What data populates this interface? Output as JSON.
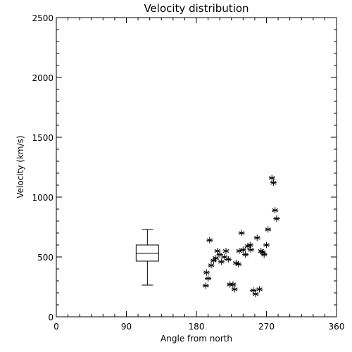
{
  "chart_data": {
    "type": "scatter",
    "title": "Velocity distribution",
    "xlabel": "Angle from north",
    "ylabel": "Velocity (km/s)",
    "xlim": [
      0,
      360
    ],
    "ylim": [
      0,
      2500
    ],
    "xticks": [
      0,
      90,
      180,
      270,
      360
    ],
    "yticks": [
      0,
      500,
      1000,
      1500,
      2000,
      2500
    ],
    "marker": "asterisk",
    "grid": false,
    "points": [
      {
        "x": 197,
        "y": 640
      },
      {
        "x": 193,
        "y": 370
      },
      {
        "x": 192,
        "y": 260
      },
      {
        "x": 195,
        "y": 320
      },
      {
        "x": 199,
        "y": 430
      },
      {
        "x": 202,
        "y": 470
      },
      {
        "x": 205,
        "y": 490
      },
      {
        "x": 207,
        "y": 550
      },
      {
        "x": 210,
        "y": 520
      },
      {
        "x": 212,
        "y": 460
      },
      {
        "x": 216,
        "y": 500
      },
      {
        "x": 218,
        "y": 550
      },
      {
        "x": 221,
        "y": 480
      },
      {
        "x": 223,
        "y": 270
      },
      {
        "x": 227,
        "y": 270
      },
      {
        "x": 229,
        "y": 230
      },
      {
        "x": 231,
        "y": 450
      },
      {
        "x": 234,
        "y": 440
      },
      {
        "x": 235,
        "y": 550
      },
      {
        "x": 238,
        "y": 700
      },
      {
        "x": 240,
        "y": 560
      },
      {
        "x": 243,
        "y": 520
      },
      {
        "x": 246,
        "y": 590
      },
      {
        "x": 249,
        "y": 600
      },
      {
        "x": 250,
        "y": 560
      },
      {
        "x": 253,
        "y": 220
      },
      {
        "x": 256,
        "y": 190
      },
      {
        "x": 258,
        "y": 660
      },
      {
        "x": 261,
        "y": 230
      },
      {
        "x": 263,
        "y": 550
      },
      {
        "x": 265,
        "y": 540
      },
      {
        "x": 267,
        "y": 520
      },
      {
        "x": 270,
        "y": 600
      },
      {
        "x": 272,
        "y": 730
      },
      {
        "x": 277,
        "y": 1160
      },
      {
        "x": 279,
        "y": 1120
      },
      {
        "x": 281,
        "y": 890
      },
      {
        "x": 283,
        "y": 820
      }
    ],
    "boxplot": {
      "x": 117,
      "min": 265,
      "q1": 465,
      "median": 530,
      "q3": 600,
      "max": 730
    }
  }
}
